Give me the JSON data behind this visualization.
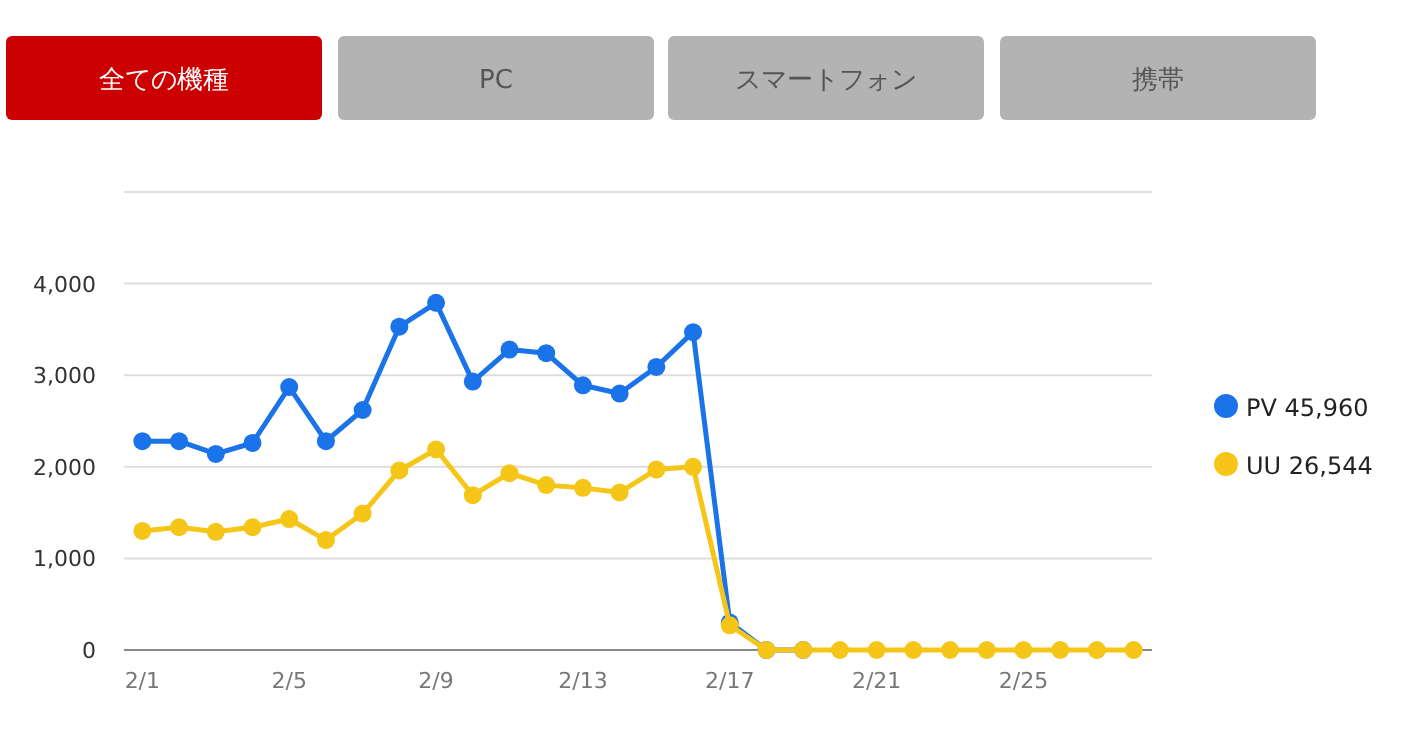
{
  "chart_data": {
    "type": "line",
    "categories": [
      "2/1",
      null,
      null,
      null,
      "2/5",
      null,
      null,
      null,
      "2/9",
      null,
      null,
      null,
      "2/13",
      null,
      null,
      null,
      "2/17",
      null,
      null,
      null,
      "2/21",
      null,
      null,
      null,
      "2/25",
      null,
      null,
      null
    ],
    "series": [
      {
        "name": "PV 45,960",
        "color": "#1a73e8",
        "values": [
          2280,
          2280,
          2140,
          2260,
          2870,
          2280,
          2620,
          3530,
          3790,
          2930,
          3280,
          3240,
          2890,
          2800,
          3090,
          3470,
          300,
          0,
          0,
          null,
          null,
          null,
          null,
          null,
          null,
          null,
          null,
          null
        ]
      },
      {
        "name": "UU 26,544",
        "color": "#f5c518",
        "values": [
          1300,
          1340,
          1290,
          1340,
          1430,
          1200,
          1490,
          1960,
          2190,
          1690,
          1930,
          1800,
          1770,
          1720,
          1970,
          2000,
          270,
          0,
          0,
          0,
          0,
          0,
          0,
          0,
          0,
          0,
          0,
          0
        ]
      }
    ],
    "ylim": [
      0,
      5000
    ],
    "yticks": [
      0,
      {
        "value": 1000,
        "label": "1,000"
      },
      {
        "value": 2000,
        "label": "2,000"
      },
      {
        "value": 3000,
        "label": "3,000"
      },
      {
        "value": 4000,
        "label": "4,000"
      },
      {
        "value": 5000,
        "label": null
      }
    ],
    "grid": "y",
    "marker": "circle",
    "legend": "right",
    "annotations": [
      "全ての機種",
      "PC",
      "スマートフォン",
      "携帯"
    ]
  }
}
